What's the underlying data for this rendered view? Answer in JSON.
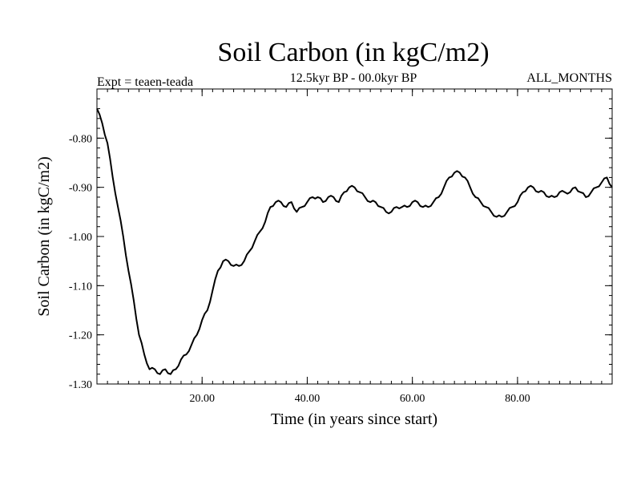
{
  "chart_data": {
    "type": "line",
    "title": "Soil Carbon (in kgC/m2)",
    "subtitle": "12.5kyr BP - 00.0kyr BP",
    "left_note": "Expt = teaen-teada",
    "right_note": "ALL_MONTHS",
    "xlabel": "Time (in years since start)",
    "ylabel": "Soil Carbon (in kgC/m2)",
    "xlim": [
      0,
      98
    ],
    "ylim": [
      -1.3,
      -0.7
    ],
    "x_ticks": [
      20,
      40,
      60,
      80
    ],
    "x_tick_labels": [
      "20.00",
      "40.00",
      "60.00",
      "80.00"
    ],
    "y_ticks": [
      -1.3,
      -1.2,
      -1.1,
      -1.0,
      -0.9,
      -0.8
    ],
    "y_tick_labels": [
      "-1.30",
      "-1.20",
      "-1.10",
      "-1.00",
      "-0.90",
      "-0.80"
    ],
    "grid": false,
    "series": [
      {
        "name": "Soil Carbon",
        "color": "#000000",
        "x": [
          0,
          1,
          2,
          3,
          4,
          5,
          6,
          7,
          8,
          9,
          10,
          11,
          12,
          13,
          14,
          15,
          16,
          17,
          18,
          19,
          20,
          21,
          22,
          23,
          24,
          25,
          26,
          27,
          28,
          29,
          30,
          31,
          32,
          33,
          34,
          35,
          36,
          37,
          38,
          39,
          40,
          41,
          42,
          43,
          44,
          45,
          46,
          47,
          48,
          49,
          50,
          51,
          52,
          53,
          54,
          55,
          56,
          57,
          58,
          59,
          60,
          61,
          62,
          63,
          64,
          65,
          66,
          67,
          68,
          69,
          70,
          71,
          72,
          73,
          74,
          75,
          76,
          77,
          78,
          79,
          80,
          81,
          82,
          83,
          84,
          85,
          86,
          87,
          88,
          89,
          90,
          91,
          92,
          93,
          94,
          95,
          96,
          97,
          98
        ],
        "values": [
          -0.74,
          -0.77,
          -0.81,
          -0.88,
          -0.94,
          -1.0,
          -1.07,
          -1.13,
          -1.2,
          -1.24,
          -1.27,
          -1.27,
          -1.28,
          -1.27,
          -1.28,
          -1.27,
          -1.25,
          -1.24,
          -1.22,
          -1.2,
          -1.17,
          -1.15,
          -1.11,
          -1.07,
          -1.05,
          -1.05,
          -1.06,
          -1.06,
          -1.05,
          -1.03,
          -1.01,
          -0.99,
          -0.97,
          -0.94,
          -0.93,
          -0.93,
          -0.94,
          -0.93,
          -0.95,
          -0.94,
          -0.93,
          -0.92,
          -0.92,
          -0.93,
          -0.92,
          -0.92,
          -0.93,
          -0.91,
          -0.9,
          -0.9,
          -0.91,
          -0.92,
          -0.93,
          -0.93,
          -0.94,
          -0.95,
          -0.95,
          -0.94,
          -0.94,
          -0.94,
          -0.93,
          -0.93,
          -0.94,
          -0.94,
          -0.93,
          -0.92,
          -0.9,
          -0.88,
          -0.87,
          -0.87,
          -0.88,
          -0.9,
          -0.92,
          -0.93,
          -0.94,
          -0.95,
          -0.96,
          -0.96,
          -0.95,
          -0.94,
          -0.93,
          -0.91,
          -0.9,
          -0.9,
          -0.91,
          -0.91,
          -0.92,
          -0.92,
          -0.91,
          -0.91,
          -0.91,
          -0.9,
          -0.91,
          -0.92,
          -0.91,
          -0.9,
          -0.89,
          -0.88,
          -0.9
        ]
      }
    ]
  }
}
